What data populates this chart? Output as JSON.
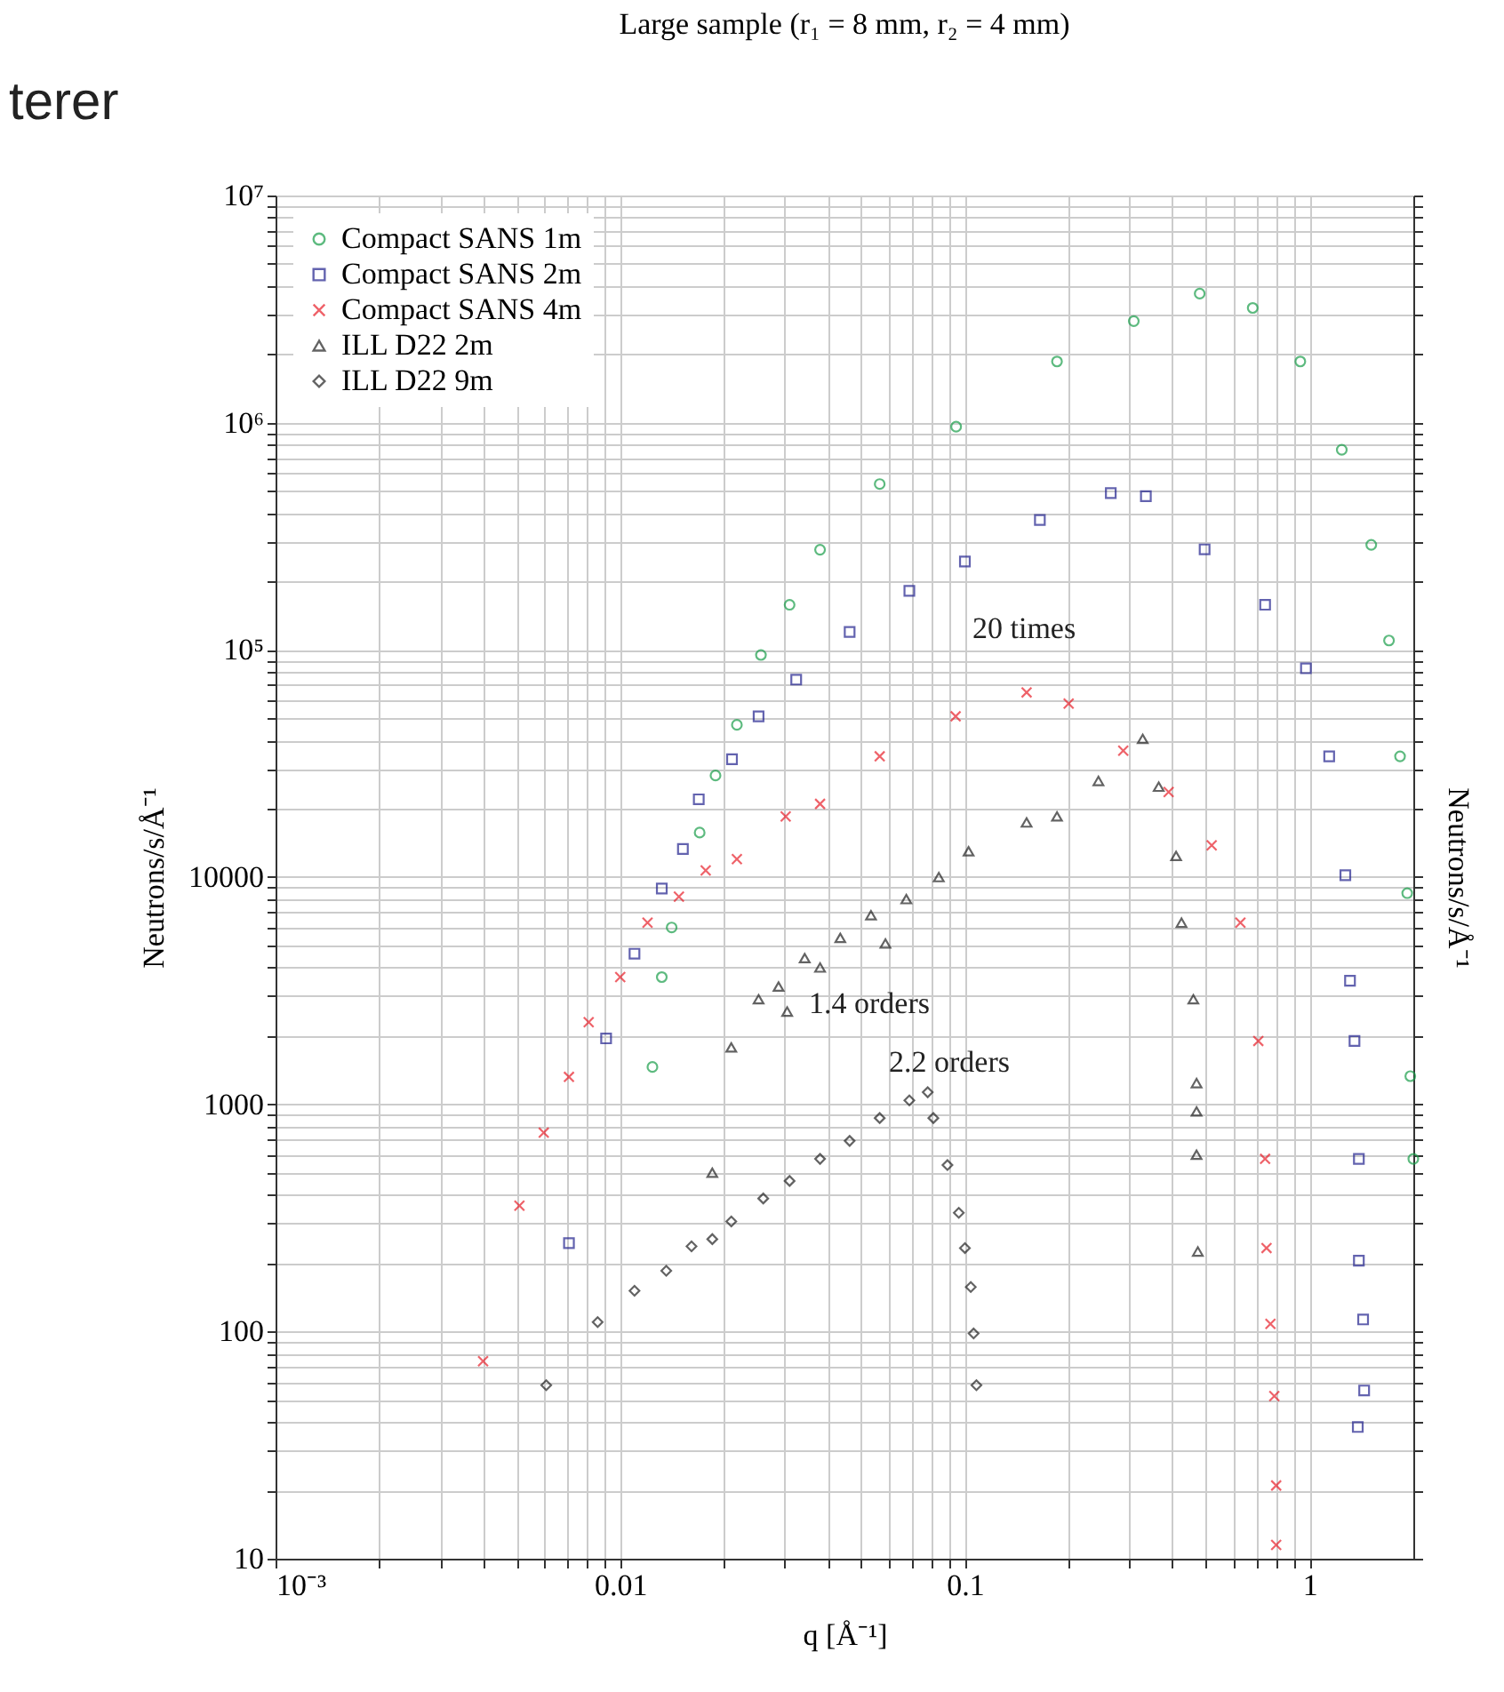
{
  "chart_data": {
    "type": "scatter",
    "title": "Large sample (r₁ = 8 mm, r₂ = 4 mm)",
    "xlabel": "q [Å⁻¹]",
    "ylabel": "Neutrons/s/Å⁻¹",
    "y2label": "Neutrons/s/Å⁻¹",
    "log": "xy",
    "grid": true,
    "legend": "top left",
    "xlim": [
      0.001,
      2
    ],
    "ylim": [
      10,
      10000000
    ],
    "xticks": [
      {
        "value": 0.001,
        "label": "10⁻³"
      },
      {
        "value": 0.002,
        "label": null
      },
      {
        "value": 0.003,
        "label": null
      },
      {
        "value": 0.004,
        "label": null
      },
      {
        "value": 0.005,
        "label": null
      },
      {
        "value": 0.006,
        "label": null
      },
      {
        "value": 0.007,
        "label": null
      },
      {
        "value": 0.008,
        "label": null
      },
      {
        "value": 0.009,
        "label": null
      },
      0.01,
      {
        "value": 0.02,
        "label": null
      },
      {
        "value": 0.03,
        "label": null
      },
      {
        "value": 0.04,
        "label": null
      },
      {
        "value": 0.05,
        "label": null
      },
      {
        "value": 0.06,
        "label": null
      },
      {
        "value": 0.07,
        "label": null
      },
      {
        "value": 0.08,
        "label": null
      },
      {
        "value": 0.09,
        "label": null
      },
      0.1,
      {
        "value": 0.2,
        "label": null
      },
      {
        "value": 0.3,
        "label": null
      },
      {
        "value": 0.4,
        "label": null
      },
      {
        "value": 0.5,
        "label": null
      },
      {
        "value": 0.6,
        "label": null
      },
      {
        "value": 0.7,
        "label": null
      },
      {
        "value": 0.8,
        "label": null
      },
      {
        "value": 0.9,
        "label": null
      },
      1
    ],
    "yticks": [
      10,
      {
        "value": 20,
        "label": null
      },
      {
        "value": 30,
        "label": null
      },
      {
        "value": 40,
        "label": null
      },
      {
        "value": 50,
        "label": null
      },
      {
        "value": 60,
        "label": null
      },
      {
        "value": 70,
        "label": null
      },
      {
        "value": 80,
        "label": null
      },
      {
        "value": 90,
        "label": null
      },
      100,
      {
        "value": 200,
        "label": null
      },
      {
        "value": 300,
        "label": null
      },
      {
        "value": 400,
        "label": null
      },
      {
        "value": 500,
        "label": null
      },
      {
        "value": 600,
        "label": null
      },
      {
        "value": 700,
        "label": null
      },
      {
        "value": 800,
        "label": null
      },
      {
        "value": 900,
        "label": null
      },
      1000,
      {
        "value": 2000,
        "label": null
      },
      {
        "value": 3000,
        "label": null
      },
      {
        "value": 4000,
        "label": null
      },
      {
        "value": 5000,
        "label": null
      },
      {
        "value": 6000,
        "label": null
      },
      {
        "value": 7000,
        "label": null
      },
      {
        "value": 8000,
        "label": null
      },
      {
        "value": 9000,
        "label": null
      },
      10000,
      {
        "value": 20000,
        "label": null
      },
      {
        "value": 30000,
        "label": null
      },
      {
        "value": 40000,
        "label": null
      },
      {
        "value": 50000,
        "label": null
      },
      {
        "value": 60000,
        "label": null
      },
      {
        "value": 70000,
        "label": null
      },
      {
        "value": 80000,
        "label": null
      },
      {
        "value": 90000,
        "label": null
      },
      {
        "value": 100000,
        "label": "10⁵"
      },
      {
        "value": 200000,
        "label": null
      },
      {
        "value": 300000,
        "label": null
      },
      {
        "value": 400000,
        "label": null
      },
      {
        "value": 500000,
        "label": null
      },
      {
        "value": 600000,
        "label": null
      },
      {
        "value": 700000,
        "label": null
      },
      {
        "value": 800000,
        "label": null
      },
      {
        "value": 900000,
        "label": null
      },
      {
        "value": 1000000,
        "label": "10⁶"
      },
      {
        "value": 2000000,
        "label": null
      },
      {
        "value": 3000000,
        "label": null
      },
      {
        "value": 4000000,
        "label": null
      },
      {
        "value": 5000000,
        "label": null
      },
      {
        "value": 6000000,
        "label": null
      },
      {
        "value": 7000000,
        "label": null
      },
      {
        "value": 8000000,
        "label": null
      },
      {
        "value": 9000000,
        "label": null
      },
      {
        "value": 10000000,
        "label": "10⁷"
      }
    ],
    "annotations": [
      "terer",
      "20 times",
      "1.4 orders",
      "2.2 orders"
    ],
    "series": [
      {
        "name": "Compact SANS 1m",
        "color": "#1a9e4a",
        "marker": "circle",
        "x": [
          0.0124,
          0.0132,
          0.0141,
          0.017,
          0.0189,
          0.0218,
          0.0256,
          0.031,
          0.038,
          0.0566,
          0.0943,
          0.185,
          0.309,
          0.48,
          0.684,
          0.94,
          1.24,
          1.51,
          1.7,
          1.83,
          1.92,
          1.96,
          2.0
        ],
        "values": [
          1460,
          3630,
          6000,
          15700,
          28000,
          46800,
          95000,
          158000,
          276000,
          537000,
          960000,
          1860000,
          2800000,
          3700000,
          3200000,
          1860000,
          760000,
          290000,
          110000,
          34000,
          8500,
          1330,
          575
        ]
      },
      {
        "name": "Compact SANS 2m",
        "color": "#22228e",
        "marker": "square",
        "x": [
          0.0071,
          0.0091,
          0.011,
          0.0132,
          0.0152,
          0.0169,
          0.0211,
          0.0252,
          0.0324,
          0.0463,
          0.069,
          0.1,
          0.165,
          0.265,
          0.335,
          0.496,
          0.743,
          0.976,
          1.14,
          1.27,
          1.31,
          1.35,
          1.39,
          1.39,
          1.43,
          1.44,
          1.38
        ],
        "values": [
          245,
          1950,
          4600,
          8900,
          13300,
          22000,
          33000,
          51000,
          74000,
          120000,
          182000,
          245000,
          373000,
          490000,
          475000,
          277000,
          158000,
          83000,
          34000,
          10200,
          3500,
          1900,
          575,
          205,
          113,
          55,
          38
        ]
      },
      {
        "name": "Compact SANS 4m",
        "color": "#e8202a",
        "marker": "cross",
        "x": [
          0.004,
          0.0051,
          0.006,
          0.0071,
          0.0081,
          0.01,
          0.012,
          0.0148,
          0.0177,
          0.0218,
          0.0302,
          0.038,
          0.0566,
          0.094,
          0.151,
          0.2,
          0.288,
          0.39,
          0.52,
          0.63,
          0.71,
          0.743,
          0.75,
          0.77,
          0.79,
          0.8,
          0.8
        ],
        "values": [
          74,
          358,
          750,
          1320,
          2300,
          3630,
          6300,
          8200,
          10700,
          12000,
          18500,
          21000,
          34000,
          51000,
          65000,
          58000,
          36000,
          23700,
          13800,
          6300,
          1900,
          575,
          233,
          108,
          52,
          21,
          11.5
        ]
      },
      {
        "name": "ILL D22 2m",
        "color": "#222222",
        "marker": "triangle",
        "x": [
          0.0185,
          0.021,
          0.0252,
          0.0288,
          0.0305,
          0.0343,
          0.038,
          0.0435,
          0.0534,
          0.0588,
          0.0676,
          0.084,
          0.1025,
          0.151,
          0.185,
          0.244,
          0.328,
          0.365,
          0.41,
          0.425,
          0.46,
          0.47,
          0.47,
          0.47,
          0.474
        ],
        "values": [
          500,
          1780,
          2900,
          3300,
          2560,
          4400,
          4000,
          5400,
          6800,
          5100,
          8000,
          10000,
          13000,
          17400,
          18500,
          26500,
          40600,
          25000,
          12400,
          6300,
          2900,
          1240,
          930,
          600,
          225
        ]
      },
      {
        "name": "ILL D22 9m",
        "color": "#222222",
        "marker": "diamond",
        "x": [
          0.0061,
          0.0086,
          0.011,
          0.0136,
          0.0161,
          0.0185,
          0.021,
          0.026,
          0.031,
          0.038,
          0.0463,
          0.0566,
          0.069,
          0.078,
          0.081,
          0.089,
          0.096,
          0.1,
          0.104,
          0.106,
          0.108
        ],
        "values": [
          58,
          110,
          151,
          185,
          237,
          255,
          305,
          385,
          460,
          575,
          690,
          870,
          1040,
          1130,
          870,
          540,
          333,
          233,
          157,
          98,
          58
        ]
      }
    ]
  }
}
